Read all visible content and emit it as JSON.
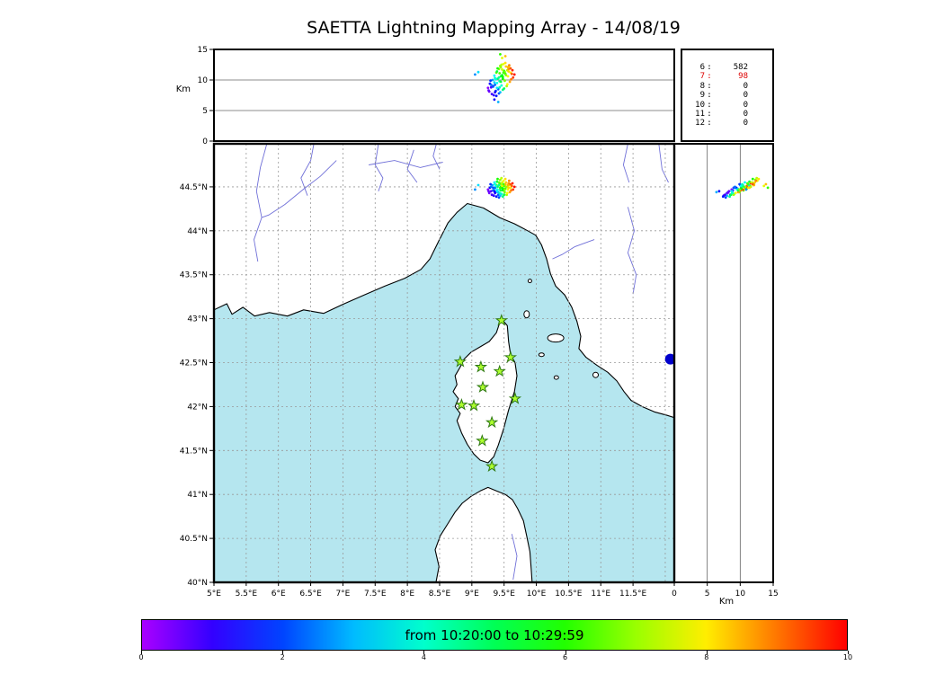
{
  "title": "SAETTA Lightning Mapping Array - 14/08/19",
  "axes": {
    "alt_label": "Km",
    "alt_ticks": [
      "15",
      "10",
      "5",
      "0"
    ],
    "alt_gridlines_km": [
      5,
      10
    ],
    "lat_ticks": [
      "44.5°N",
      "44°N",
      "43.5°N",
      "43°N",
      "42.5°N",
      "42°N",
      "41.5°N",
      "41°N",
      "40.5°N",
      "40°N"
    ],
    "lon_ticks": [
      "5°E",
      "5.5°E",
      "6°E",
      "6.5°E",
      "7°E",
      "7.5°E",
      "8°E",
      "8.5°E",
      "9°E",
      "9.5°E",
      "10°E",
      "10.5°E",
      "11°E",
      "11.5°E"
    ],
    "km_ticks": [
      "0",
      "5",
      "10",
      "15"
    ],
    "km_label": "Km"
  },
  "stats_panel": {
    "rows": [
      {
        "station": "6",
        "count": "582",
        "color": "#000000"
      },
      {
        "station": "7",
        "count": "98",
        "color": "#dd0000"
      },
      {
        "station": "8",
        "count": "0",
        "color": "#000000"
      },
      {
        "station": "9",
        "count": "0",
        "color": "#000000"
      },
      {
        "station": "10",
        "count": "0",
        "color": "#000000"
      },
      {
        "station": "11",
        "count": "0",
        "color": "#000000"
      },
      {
        "station": "12",
        "count": "0",
        "color": "#000000"
      }
    ]
  },
  "colorbar": {
    "label": "from 10:20:00 to 10:29:59",
    "tick_labels": [
      "0",
      "2",
      "4",
      "6",
      "8",
      "10"
    ],
    "hue_deg_at_t0": 280,
    "hue_deg_at_t10": 0
  },
  "map_colors": {
    "sea": "#b5e6ef",
    "land": "#ffffff",
    "coast": "#000000",
    "river": "#7070d8",
    "grid": "#999999",
    "station_fill": "#adff2f",
    "station_edge": "#2f7a12"
  },
  "chart_data": {
    "type": "scatter",
    "title": "SAETTA Lightning Mapping Array - 14/08/19",
    "panels": {
      "top": "altitude (km) vs longitude",
      "main": "map latitude vs longitude",
      "right": "altitude (km) vs latitude"
    },
    "lon_range_deg_e": [
      5.0,
      12.14
    ],
    "lat_range_deg_n": [
      40.0,
      44.99
    ],
    "alt_range_km": [
      0,
      15
    ],
    "grid_step_deg": 0.5,
    "time_minutes_range": [
      0,
      10
    ],
    "time_window": "from 10:20:00 to 10:29:59",
    "stations_lonlat": [
      [
        9.46,
        42.98
      ],
      [
        8.82,
        42.51
      ],
      [
        9.14,
        42.45
      ],
      [
        9.43,
        42.4
      ],
      [
        9.6,
        42.56
      ],
      [
        9.17,
        42.22
      ],
      [
        9.67,
        42.09
      ],
      [
        8.84,
        42.02
      ],
      [
        9.03,
        42.01
      ],
      [
        9.31,
        41.82
      ],
      [
        9.16,
        41.61
      ],
      [
        9.31,
        41.32
      ]
    ],
    "extra_marker": {
      "lon": 12.08,
      "lat": 42.54,
      "radius_px": 6,
      "color": "#0000cc"
    },
    "sources": [
      [
        9.38,
        44.52,
        11.2,
        6.5
      ],
      [
        9.42,
        44.55,
        11.8,
        6.8
      ],
      [
        9.45,
        44.53,
        12.1,
        7.0
      ],
      [
        9.5,
        44.51,
        11.5,
        6.2
      ],
      [
        9.47,
        44.49,
        10.8,
        5.5
      ],
      [
        9.4,
        44.5,
        10.2,
        4.8
      ],
      [
        9.35,
        44.48,
        9.6,
        3.2
      ],
      [
        9.33,
        44.46,
        8.9,
        2.5
      ],
      [
        9.37,
        44.44,
        8.2,
        1.8
      ],
      [
        9.43,
        44.47,
        9.8,
        4.2
      ],
      [
        9.48,
        44.46,
        10.5,
        5.8
      ],
      [
        9.52,
        44.48,
        11.0,
        6.0
      ],
      [
        9.55,
        44.5,
        11.6,
        7.2
      ],
      [
        9.58,
        44.52,
        12.0,
        7.5
      ],
      [
        9.6,
        44.49,
        11.2,
        8.0
      ],
      [
        9.56,
        44.47,
        10.6,
        7.8
      ],
      [
        9.51,
        44.44,
        9.9,
        6.6
      ],
      [
        9.46,
        44.42,
        9.1,
        3.9
      ],
      [
        9.41,
        44.41,
        8.5,
        2.2
      ],
      [
        9.36,
        44.43,
        8.0,
        1.2
      ],
      [
        9.3,
        44.45,
        8.8,
        0.8
      ],
      [
        9.28,
        44.49,
        9.4,
        1.5
      ],
      [
        9.32,
        44.52,
        10.0,
        2.8
      ],
      [
        9.39,
        44.56,
        11.4,
        5.2
      ],
      [
        9.44,
        44.58,
        12.3,
        6.9
      ],
      [
        9.49,
        44.57,
        12.6,
        7.7
      ],
      [
        9.53,
        44.55,
        12.2,
        8.3
      ],
      [
        9.57,
        44.54,
        11.8,
        8.8
      ],
      [
        9.62,
        44.51,
        11.0,
        9.2
      ],
      [
        9.64,
        44.47,
        10.4,
        9.5
      ],
      [
        9.59,
        44.44,
        9.7,
        8.6
      ],
      [
        9.54,
        44.41,
        9.0,
        7.1
      ],
      [
        9.48,
        44.39,
        8.4,
        4.6
      ],
      [
        9.42,
        44.38,
        7.8,
        2.0
      ],
      [
        9.34,
        44.4,
        7.5,
        1.0
      ],
      [
        9.27,
        44.43,
        8.1,
        0.5
      ],
      [
        9.25,
        44.47,
        8.7,
        0.3
      ],
      [
        9.29,
        44.53,
        9.9,
        1.9
      ],
      [
        9.35,
        44.55,
        10.7,
        3.5
      ],
      [
        9.4,
        44.59,
        11.9,
        5.9
      ],
      [
        9.46,
        44.6,
        12.5,
        7.3
      ],
      [
        9.52,
        44.59,
        12.8,
        8.1
      ],
      [
        9.58,
        44.57,
        12.4,
        8.9
      ],
      [
        9.63,
        44.54,
        11.6,
        9.7
      ],
      [
        9.66,
        44.5,
        10.9,
        9.9
      ],
      [
        9.61,
        44.46,
        10.1,
        9.0
      ],
      [
        9.55,
        44.43,
        9.3,
        7.9
      ],
      [
        9.5,
        44.41,
        8.6,
        5.0
      ],
      [
        9.44,
        44.4,
        8.0,
        3.0
      ],
      [
        9.38,
        44.39,
        7.4,
        1.6
      ],
      [
        9.31,
        44.41,
        7.7,
        0.9
      ],
      [
        9.26,
        44.45,
        8.3,
        0.6
      ],
      [
        9.3,
        44.5,
        9.2,
        2.4
      ],
      [
        9.36,
        44.53,
        10.3,
        4.0
      ],
      [
        9.43,
        44.54,
        11.1,
        6.4
      ],
      [
        9.47,
        44.55,
        11.7,
        7.4
      ],
      [
        9.51,
        44.52,
        11.3,
        6.7
      ],
      [
        9.45,
        44.5,
        10.6,
        5.4
      ],
      [
        9.39,
        44.47,
        9.5,
        3.7
      ],
      [
        9.33,
        44.49,
        9.0,
        2.1
      ],
      [
        9.47,
        44.51,
        13.6,
        7.6
      ],
      [
        9.52,
        44.53,
        13.9,
        8.4
      ],
      [
        9.44,
        44.49,
        14.2,
        6.1
      ],
      [
        9.05,
        44.47,
        10.9,
        2.6
      ],
      [
        9.1,
        44.52,
        11.3,
        3.3
      ],
      [
        9.35,
        44.45,
        6.8,
        1.4
      ],
      [
        9.41,
        44.44,
        6.4,
        2.9
      ],
      [
        9.36,
        44.49,
        9.2,
        2.3
      ],
      [
        9.42,
        44.52,
        10.4,
        4.4
      ],
      [
        9.49,
        44.53,
        11.2,
        6.3
      ],
      [
        9.53,
        44.5,
        10.8,
        7.0
      ],
      [
        9.57,
        44.49,
        11.4,
        8.2
      ],
      [
        9.45,
        44.46,
        9.7,
        5.1
      ],
      [
        9.39,
        44.45,
        8.7,
        3.4
      ],
      [
        9.56,
        44.52,
        12.1,
        8.5
      ],
      [
        9.6,
        44.53,
        11.9,
        9.3
      ],
      [
        9.48,
        44.48,
        10.2,
        5.7
      ],
      [
        9.51,
        44.47,
        9.9,
        6.8
      ],
      [
        9.43,
        44.43,
        8.8,
        4.1
      ],
      [
        9.37,
        44.51,
        10.1,
        3.8
      ]
    ]
  },
  "map_geometry": {
    "mainland": [
      [
        5.0,
        43.1
      ],
      [
        5.2,
        43.17
      ],
      [
        5.28,
        43.05
      ],
      [
        5.45,
        43.13
      ],
      [
        5.63,
        43.03
      ],
      [
        5.86,
        43.07
      ],
      [
        6.14,
        43.03
      ],
      [
        6.39,
        43.1
      ],
      [
        6.7,
        43.06
      ],
      [
        7.02,
        43.17
      ],
      [
        7.33,
        43.27
      ],
      [
        7.65,
        43.37
      ],
      [
        7.96,
        43.46
      ],
      [
        8.21,
        43.56
      ],
      [
        8.35,
        43.68
      ],
      [
        8.49,
        43.89
      ],
      [
        8.63,
        44.09
      ],
      [
        8.77,
        44.21
      ],
      [
        8.93,
        44.31
      ],
      [
        9.18,
        44.26
      ],
      [
        9.43,
        44.15
      ],
      [
        9.66,
        44.08
      ],
      [
        9.84,
        44.01
      ],
      [
        9.99,
        43.95
      ],
      [
        10.08,
        43.84
      ],
      [
        10.16,
        43.68
      ],
      [
        10.22,
        43.51
      ],
      [
        10.3,
        43.37
      ],
      [
        10.44,
        43.27
      ],
      [
        10.55,
        43.13
      ],
      [
        10.63,
        42.97
      ],
      [
        10.69,
        42.8
      ],
      [
        10.66,
        42.66
      ],
      [
        10.77,
        42.56
      ],
      [
        10.94,
        42.47
      ],
      [
        11.11,
        42.39
      ],
      [
        11.25,
        42.29
      ],
      [
        11.36,
        42.17
      ],
      [
        11.47,
        42.07
      ],
      [
        11.64,
        42.0
      ],
      [
        11.83,
        41.94
      ],
      [
        12.03,
        41.9
      ],
      [
        12.2,
        41.86
      ],
      [
        12.2,
        45.05
      ],
      [
        4.95,
        45.05
      ]
    ],
    "corsica": [
      [
        9.48,
        42.98
      ],
      [
        9.55,
        42.92
      ],
      [
        9.57,
        42.74
      ],
      [
        9.6,
        42.59
      ],
      [
        9.67,
        42.5
      ],
      [
        9.7,
        42.35
      ],
      [
        9.66,
        42.17
      ],
      [
        9.57,
        41.96
      ],
      [
        9.49,
        41.74
      ],
      [
        9.41,
        41.56
      ],
      [
        9.34,
        41.43
      ],
      [
        9.25,
        41.36
      ],
      [
        9.13,
        41.39
      ],
      [
        9.03,
        41.46
      ],
      [
        8.93,
        41.57
      ],
      [
        8.84,
        41.7
      ],
      [
        8.77,
        41.84
      ],
      [
        8.82,
        41.92
      ],
      [
        8.74,
        42.0
      ],
      [
        8.79,
        42.09
      ],
      [
        8.71,
        42.17
      ],
      [
        8.77,
        42.25
      ],
      [
        8.74,
        42.35
      ],
      [
        8.82,
        42.45
      ],
      [
        8.88,
        42.54
      ],
      [
        8.99,
        42.62
      ],
      [
        9.13,
        42.68
      ],
      [
        9.27,
        42.74
      ],
      [
        9.38,
        42.84
      ],
      [
        9.43,
        42.95
      ]
    ],
    "sardinia": [
      [
        8.43,
        39.95
      ],
      [
        8.49,
        40.18
      ],
      [
        8.43,
        40.37
      ],
      [
        8.51,
        40.53
      ],
      [
        8.63,
        40.67
      ],
      [
        8.74,
        40.8
      ],
      [
        8.85,
        40.9
      ],
      [
        8.99,
        40.98
      ],
      [
        9.13,
        41.04
      ],
      [
        9.25,
        41.08
      ],
      [
        9.38,
        41.04
      ],
      [
        9.52,
        41.0
      ],
      [
        9.63,
        40.94
      ],
      [
        9.71,
        40.84
      ],
      [
        9.8,
        40.7
      ],
      [
        9.85,
        40.53
      ],
      [
        9.9,
        40.35
      ],
      [
        9.92,
        40.16
      ],
      [
        9.94,
        39.95
      ]
    ],
    "islands": [
      {
        "lon": 10.3,
        "lat": 42.78,
        "rx": 9,
        "ry": 4.5
      },
      {
        "lon": 9.85,
        "lat": 43.05,
        "rx": 3,
        "ry": 4
      },
      {
        "lon": 9.9,
        "lat": 43.43,
        "rx": 2,
        "ry": 2
      },
      {
        "lon": 10.31,
        "lat": 42.33,
        "rx": 2.5,
        "ry": 2
      },
      {
        "lon": 10.92,
        "lat": 42.36,
        "rx": 3,
        "ry": 3
      },
      {
        "lon": 10.08,
        "lat": 42.59,
        "rx": 3,
        "ry": 2
      }
    ],
    "rivers": [
      [
        [
          5.82,
          44.99
        ],
        [
          5.72,
          44.72
        ],
        [
          5.66,
          44.45
        ],
        [
          5.74,
          44.15
        ],
        [
          5.62,
          43.9
        ],
        [
          5.68,
          43.65
        ]
      ],
      [
        [
          6.9,
          44.8
        ],
        [
          6.65,
          44.62
        ],
        [
          6.4,
          44.48
        ],
        [
          6.1,
          44.3
        ],
        [
          5.85,
          44.18
        ],
        [
          5.74,
          44.15
        ]
      ],
      [
        [
          6.55,
          44.99
        ],
        [
          6.5,
          44.8
        ],
        [
          6.35,
          44.6
        ],
        [
          6.45,
          44.4
        ]
      ],
      [
        [
          7.55,
          44.99
        ],
        [
          7.5,
          44.75
        ],
        [
          7.62,
          44.6
        ],
        [
          7.55,
          44.45
        ]
      ],
      [
        [
          8.1,
          44.92
        ],
        [
          8.0,
          44.7
        ],
        [
          8.15,
          44.55
        ]
      ],
      [
        [
          8.45,
          44.99
        ],
        [
          8.4,
          44.85
        ],
        [
          8.5,
          44.7
        ]
      ],
      [
        [
          7.4,
          44.75
        ],
        [
          7.8,
          44.8
        ],
        [
          8.2,
          44.72
        ],
        [
          8.55,
          44.78
        ]
      ],
      [
        [
          10.9,
          43.9
        ],
        [
          10.6,
          43.82
        ],
        [
          10.4,
          43.73
        ],
        [
          10.25,
          43.68
        ]
      ],
      [
        [
          11.42,
          44.27
        ],
        [
          11.52,
          44.0
        ],
        [
          11.42,
          43.75
        ],
        [
          11.55,
          43.5
        ],
        [
          11.5,
          43.28
        ]
      ],
      [
        [
          11.42,
          44.99
        ],
        [
          11.35,
          44.75
        ],
        [
          11.44,
          44.55
        ]
      ],
      [
        [
          11.9,
          44.99
        ],
        [
          11.95,
          44.7
        ],
        [
          12.05,
          44.55
        ]
      ],
      [
        [
          9.64,
          40.03
        ],
        [
          9.7,
          40.3
        ],
        [
          9.62,
          40.55
        ]
      ]
    ]
  }
}
